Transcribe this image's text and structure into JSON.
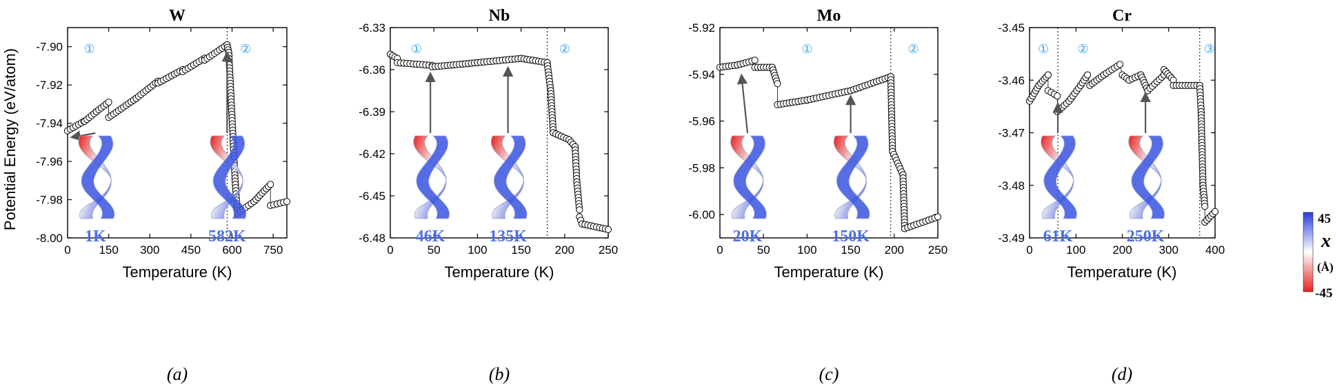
{
  "y_label": "Potential Energy (eV/atom)",
  "colorbar": {
    "max_label": "45",
    "min_label": "-45",
    "symbol": "x",
    "unit": "(Å)",
    "colors": [
      "#2a3ee0",
      "#ffffff",
      "#e82020"
    ]
  },
  "style": {
    "marker_fill": "#ffffff",
    "marker_stroke": "#000000",
    "region_color": "#3aa4e8",
    "temp_label_color": "#4a6ee8",
    "arrow_color": "#555555"
  },
  "chart_data": [
    {
      "type": "scatter",
      "title": "W",
      "caption": "(a)",
      "xlabel": "Temperature (K)",
      "xlim": [
        0,
        800
      ],
      "ylim": [
        -8.0,
        -7.89
      ],
      "xticks": [
        0,
        150,
        300,
        450,
        600,
        750
      ],
      "yticks": [
        -8.0,
        -7.98,
        -7.96,
        -7.94,
        -7.92,
        -7.9
      ],
      "ytick_labels": [
        "-8.00",
        "-7.98",
        "-7.96",
        "-7.94",
        "-7.92",
        "-7.90"
      ],
      "transitions": [
        582
      ],
      "regions": [
        {
          "label": "①",
          "x": 80
        },
        {
          "label": "②",
          "x": 650
        }
      ],
      "snapshots": [
        {
          "label": "1K",
          "x": 1,
          "y": -7.943
        },
        {
          "label": "582K",
          "x": 582,
          "y": -7.899
        }
      ],
      "segments": [
        [
          [
            0,
            -7.944
          ],
          [
            60,
            -7.939
          ]
        ],
        [
          [
            62,
            -7.939
          ],
          [
            105,
            -7.934
          ]
        ],
        [
          [
            105,
            -7.934
          ],
          [
            150,
            -7.929
          ]
        ],
        [
          [
            150,
            -7.937
          ],
          [
            250,
            -7.927
          ]
        ],
        [
          [
            250,
            -7.927
          ],
          [
            330,
            -7.918
          ]
        ],
        [
          [
            330,
            -7.919
          ],
          [
            420,
            -7.912
          ]
        ],
        [
          [
            420,
            -7.913
          ],
          [
            500,
            -7.906
          ]
        ],
        [
          [
            500,
            -7.907
          ],
          [
            582,
            -7.899
          ]
        ],
        [
          [
            582,
            -7.899
          ],
          [
            588,
            -7.903
          ]
        ],
        [
          [
            588,
            -7.903
          ],
          [
            600,
            -7.937
          ]
        ],
        [
          [
            600,
            -7.937
          ],
          [
            605,
            -7.952
          ]
        ],
        [
          [
            605,
            -7.952
          ],
          [
            612,
            -7.972
          ]
        ],
        [
          [
            612,
            -7.972
          ],
          [
            620,
            -7.987
          ]
        ],
        [
          [
            620,
            -7.987
          ],
          [
            680,
            -7.981
          ]
        ],
        [
          [
            680,
            -7.981
          ],
          [
            740,
            -7.972
          ]
        ],
        [
          [
            740,
            -7.983
          ],
          [
            800,
            -7.981
          ]
        ]
      ]
    },
    {
      "type": "scatter",
      "title": "Nb",
      "caption": "(b)",
      "xlabel": "Temperature (K)",
      "xlim": [
        0,
        250
      ],
      "ylim": [
        -6.48,
        -6.33
      ],
      "xticks": [
        0,
        50,
        100,
        150,
        200,
        250
      ],
      "yticks": [
        -6.48,
        -6.45,
        -6.42,
        -6.39,
        -6.36,
        -6.33
      ],
      "ytick_labels": [
        "-6.48",
        "-6.45",
        "-6.42",
        "-6.39",
        "-6.36",
        "-6.33"
      ],
      "transitions": [
        180
      ],
      "regions": [
        {
          "label": "①",
          "x": 30
        },
        {
          "label": "②",
          "x": 200
        }
      ],
      "snapshots": [
        {
          "label": "46K",
          "x": 46,
          "y": -6.357
        },
        {
          "label": "135K",
          "x": 135,
          "y": -6.353
        }
      ],
      "segments": [
        [
          [
            0,
            -6.349
          ],
          [
            8,
            -6.352
          ]
        ],
        [
          [
            8,
            -6.355
          ],
          [
            48,
            -6.357
          ]
        ],
        [
          [
            48,
            -6.358
          ],
          [
            100,
            -6.355
          ]
        ],
        [
          [
            100,
            -6.355
          ],
          [
            150,
            -6.352
          ]
        ],
        [
          [
            150,
            -6.352
          ],
          [
            180,
            -6.355
          ]
        ],
        [
          [
            180,
            -6.355
          ],
          [
            184,
            -6.375
          ]
        ],
        [
          [
            184,
            -6.375
          ],
          [
            187,
            -6.405
          ]
        ],
        [
          [
            187,
            -6.405
          ],
          [
            205,
            -6.41
          ]
        ],
        [
          [
            205,
            -6.41
          ],
          [
            212,
            -6.415
          ]
        ],
        [
          [
            212,
            -6.415
          ],
          [
            214,
            -6.44
          ]
        ],
        [
          [
            214,
            -6.44
          ],
          [
            217,
            -6.46
          ]
        ],
        [
          [
            217,
            -6.465
          ],
          [
            220,
            -6.47
          ]
        ],
        [
          [
            220,
            -6.47
          ],
          [
            250,
            -6.474
          ]
        ]
      ]
    },
    {
      "type": "scatter",
      "title": "Mo",
      "caption": "(c)",
      "xlabel": "Temperature (K)",
      "xlim": [
        0,
        250
      ],
      "ylim": [
        -6.01,
        -5.92
      ],
      "xticks": [
        0,
        50,
        100,
        150,
        200,
        250
      ],
      "yticks": [
        -6.0,
        -5.98,
        -5.96,
        -5.94,
        -5.92
      ],
      "ytick_labels": [
        "-6.00",
        "-5.98",
        "-5.96",
        "-5.94",
        "-5.92"
      ],
      "transitions": [
        196
      ],
      "regions": [
        {
          "label": "①",
          "x": 100
        },
        {
          "label": "②",
          "x": 222
        }
      ],
      "snapshots": [
        {
          "label": "20K",
          "x": 20,
          "y": -5.937
        },
        {
          "label": "150K",
          "x": 150,
          "y": -5.946
        }
      ],
      "segments": [
        [
          [
            0,
            -5.937
          ],
          [
            20,
            -5.936
          ]
        ],
        [
          [
            20,
            -5.936
          ],
          [
            40,
            -5.934
          ]
        ],
        [
          [
            40,
            -5.937
          ],
          [
            60,
            -5.937
          ]
        ],
        [
          [
            60,
            -5.937
          ],
          [
            66,
            -5.944
          ]
        ],
        [
          [
            66,
            -5.953
          ],
          [
            100,
            -5.951
          ]
        ],
        [
          [
            100,
            -5.951
          ],
          [
            150,
            -5.947
          ]
        ],
        [
          [
            150,
            -5.947
          ],
          [
            196,
            -5.941
          ]
        ],
        [
          [
            196,
            -5.941
          ],
          [
            198,
            -5.973
          ]
        ],
        [
          [
            198,
            -5.973
          ],
          [
            210,
            -5.983
          ]
        ],
        [
          [
            210,
            -5.983
          ],
          [
            212,
            -6.006
          ]
        ],
        [
          [
            212,
            -6.006
          ],
          [
            250,
            -6.001
          ]
        ]
      ]
    },
    {
      "type": "scatter",
      "title": "Cr",
      "caption": "(d)",
      "xlabel": "Temperature (K)",
      "xlim": [
        0,
        400
      ],
      "ylim": [
        -3.49,
        -3.45
      ],
      "xticks": [
        0,
        100,
        200,
        300,
        400
      ],
      "yticks": [
        -3.49,
        -3.48,
        -3.47,
        -3.46,
        -3.45
      ],
      "ytick_labels": [
        "-3.49",
        "-3.48",
        "-3.47",
        "-3.46",
        "-3.45"
      ],
      "transitions": [
        61,
        367
      ],
      "regions": [
        {
          "label": "①",
          "x": 30
        },
        {
          "label": "②",
          "x": 115
        },
        {
          "label": "③",
          "x": 388
        }
      ],
      "snapshots": [
        {
          "label": "61K",
          "x": 61,
          "y": -3.463
        },
        {
          "label": "250K",
          "x": 250,
          "y": -3.461
        }
      ],
      "segments": [
        [
          [
            0,
            -3.464
          ],
          [
            20,
            -3.461
          ]
        ],
        [
          [
            20,
            -3.461
          ],
          [
            40,
            -3.459
          ]
        ],
        [
          [
            40,
            -3.462
          ],
          [
            60,
            -3.463
          ]
        ],
        [
          [
            60,
            -3.466
          ],
          [
            85,
            -3.464
          ]
        ],
        [
          [
            85,
            -3.464
          ],
          [
            110,
            -3.461
          ]
        ],
        [
          [
            110,
            -3.461
          ],
          [
            125,
            -3.459
          ]
        ],
        [
          [
            130,
            -3.461
          ],
          [
            160,
            -3.459
          ]
        ],
        [
          [
            160,
            -3.459
          ],
          [
            195,
            -3.457
          ]
        ],
        [
          [
            200,
            -3.459
          ],
          [
            215,
            -3.46
          ]
        ],
        [
          [
            215,
            -3.46
          ],
          [
            240,
            -3.459
          ]
        ],
        [
          [
            240,
            -3.459
          ],
          [
            255,
            -3.462
          ]
        ],
        [
          [
            255,
            -3.462
          ],
          [
            290,
            -3.459
          ]
        ],
        [
          [
            290,
            -3.458
          ],
          [
            310,
            -3.46
          ]
        ],
        [
          [
            310,
            -3.461
          ],
          [
            367,
            -3.461
          ]
        ],
        [
          [
            367,
            -3.461
          ],
          [
            370,
            -3.466
          ]
        ],
        [
          [
            370,
            -3.466
          ],
          [
            374,
            -3.48
          ]
        ],
        [
          [
            374,
            -3.48
          ],
          [
            378,
            -3.484
          ]
        ],
        [
          [
            378,
            -3.487
          ],
          [
            400,
            -3.485
          ]
        ]
      ]
    }
  ]
}
